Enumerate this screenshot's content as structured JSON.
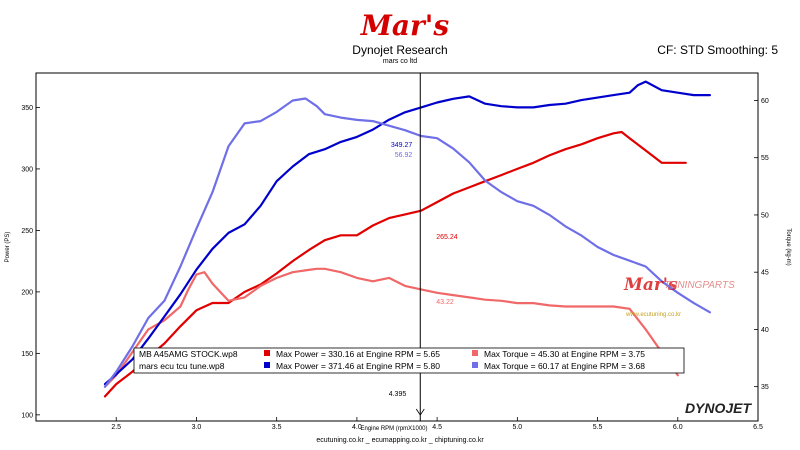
{
  "header": {
    "logo_text": "Mar's",
    "title": "Dynojet Research",
    "subtitle": "mars co ltd",
    "right": "CF: STD Smoothing: 5"
  },
  "footer": "ecutuning.co.kr _ ecumapping.co.kr _ chiptuning.co.kr",
  "watermark": {
    "logo": "Mar's",
    "text": "TUNINGPARTS",
    "url": "www.ecutuning.co.kr"
  },
  "brand": "DYNOJET",
  "colors": {
    "stock_power": "#e00000",
    "stock_torque": "#f06868",
    "tune_power": "#0000cc",
    "tune_torque": "#6f6fe8",
    "cursor": "#000000",
    "logo": "#d40000"
  },
  "chart_data": {
    "type": "line",
    "xlabel": "Engine RPM (rpmX1000)",
    "ylabel": "Power (PS)",
    "y2label": "Torque (kg-m)",
    "xlim": [
      2.0,
      6.5
    ],
    "ylim": [
      95,
      378
    ],
    "y2lim": [
      32.0,
      62.4
    ],
    "xticks": [
      "2.5",
      "3.0",
      "3.5",
      "4.0",
      "4.5",
      "5.0",
      "5.5",
      "6.0",
      "6.5"
    ],
    "yticks": [
      "100",
      "150",
      "200",
      "250",
      "300",
      "350"
    ],
    "y2ticks": [
      "35",
      "40",
      "45",
      "50",
      "55",
      "60"
    ],
    "grid": false,
    "cursor": {
      "x_label": "4.395",
      "x": 4.395,
      "values": {
        "tune_power": "349.27",
        "tune_torque": "56.92",
        "stock_power": "265.24",
        "stock_torque": "43.22"
      }
    },
    "legend": {
      "placement": "bottom-center",
      "rows": [
        {
          "run": "MB A45AMG STOCK.wp8",
          "power": "Max Power = 330.16 at Engine RPM = 5.65",
          "torque": "Max Torque = 45.30 at Engine RPM = 3.75"
        },
        {
          "run": "mars ecu tcu tune.wp8",
          "power": "Max Power = 371.46 at Engine RPM = 5.80",
          "torque": "Max Torque = 60.17 at Engine RPM = 3.68"
        }
      ]
    },
    "series": [
      {
        "key": "stock_power",
        "axis": "left",
        "x": [
          2.43,
          2.5,
          2.6,
          2.7,
          2.8,
          2.9,
          3.0,
          3.1,
          3.2,
          3.3,
          3.4,
          3.5,
          3.6,
          3.7,
          3.8,
          3.9,
          4.0,
          4.1,
          4.2,
          4.3,
          4.4,
          4.5,
          4.6,
          4.7,
          4.8,
          4.9,
          5.0,
          5.1,
          5.2,
          5.3,
          5.4,
          5.5,
          5.6,
          5.65,
          5.7,
          5.8,
          5.9,
          6.0,
          6.05
        ],
        "y": [
          115,
          125,
          135,
          147,
          158,
          172,
          185,
          191,
          191,
          200,
          206,
          215,
          225,
          234,
          242,
          246,
          246,
          254,
          260,
          263,
          266,
          273,
          280,
          285,
          290,
          295,
          300,
          305,
          311,
          316,
          320,
          325,
          329,
          330,
          325,
          315,
          305,
          305,
          305
        ]
      },
      {
        "key": "stock_torque",
        "axis": "right",
        "x": [
          2.43,
          2.5,
          2.6,
          2.7,
          2.8,
          2.9,
          2.95,
          3.0,
          3.05,
          3.1,
          3.2,
          3.3,
          3.4,
          3.5,
          3.6,
          3.7,
          3.75,
          3.8,
          3.9,
          4.0,
          4.1,
          4.2,
          4.3,
          4.4,
          4.5,
          4.6,
          4.7,
          4.8,
          4.9,
          5.0,
          5.1,
          5.2,
          5.3,
          5.4,
          5.5,
          5.6,
          5.7,
          5.8,
          5.9,
          6.0
        ],
        "y": [
          35.0,
          36.0,
          38.0,
          40.0,
          40.8,
          42.0,
          43.5,
          44.8,
          45.0,
          44.0,
          42.5,
          42.8,
          43.8,
          44.5,
          45.0,
          45.2,
          45.3,
          45.3,
          45.0,
          44.5,
          44.2,
          44.5,
          43.8,
          43.5,
          43.2,
          43.0,
          42.8,
          42.6,
          42.5,
          42.3,
          42.3,
          42.1,
          42.0,
          42.0,
          42.0,
          42.0,
          41.8,
          40.0,
          38.0,
          36.0
        ]
      },
      {
        "key": "tune_power",
        "axis": "left",
        "x": [
          2.43,
          2.5,
          2.6,
          2.7,
          2.8,
          2.9,
          3.0,
          3.1,
          3.2,
          3.3,
          3.4,
          3.5,
          3.6,
          3.7,
          3.8,
          3.9,
          4.0,
          4.1,
          4.2,
          4.3,
          4.4,
          4.5,
          4.6,
          4.7,
          4.8,
          4.9,
          5.0,
          5.1,
          5.2,
          5.3,
          5.4,
          5.5,
          5.6,
          5.7,
          5.75,
          5.8,
          5.9,
          6.0,
          6.1,
          6.2
        ],
        "y": [
          125,
          133,
          145,
          162,
          180,
          198,
          218,
          235,
          248,
          255,
          270,
          290,
          302,
          312,
          316,
          322,
          326,
          332,
          340,
          346,
          350,
          354,
          357,
          359,
          353,
          351,
          350,
          350,
          352,
          353,
          356,
          358,
          360,
          362,
          368,
          371,
          364,
          362,
          360,
          360
        ]
      },
      {
        "key": "tune_torque",
        "axis": "right",
        "x": [
          2.43,
          2.5,
          2.6,
          2.7,
          2.8,
          2.9,
          3.0,
          3.1,
          3.2,
          3.3,
          3.4,
          3.5,
          3.6,
          3.68,
          3.75,
          3.8,
          3.9,
          4.0,
          4.1,
          4.2,
          4.3,
          4.4,
          4.5,
          4.6,
          4.7,
          4.8,
          4.9,
          5.0,
          5.1,
          5.2,
          5.3,
          5.4,
          5.5,
          5.6,
          5.7,
          5.8,
          5.9,
          6.0,
          6.1,
          6.2
        ],
        "y": [
          35.0,
          36.3,
          38.5,
          41.0,
          42.5,
          45.5,
          48.8,
          52.0,
          56.0,
          58.0,
          58.2,
          59.0,
          60.0,
          60.17,
          59.5,
          58.8,
          58.5,
          58.3,
          58.2,
          57.8,
          57.4,
          56.9,
          56.7,
          55.8,
          54.6,
          53.0,
          52.0,
          51.2,
          50.8,
          50.0,
          49.0,
          48.2,
          47.2,
          46.5,
          46.0,
          45.5,
          44.2,
          43.2,
          42.3,
          41.5
        ]
      }
    ]
  }
}
